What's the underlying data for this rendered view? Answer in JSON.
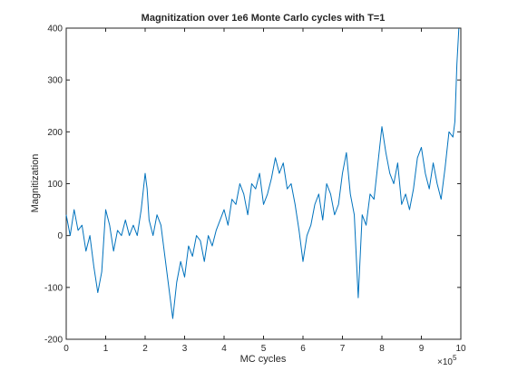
{
  "chart_data": {
    "type": "line",
    "title": "Magnitization over 1e6 Monte Carlo cycles with T=1",
    "xlabel": "MC cycles",
    "ylabel": "Magnitization",
    "xlim": [
      0,
      10
    ],
    "ylim": [
      -200,
      400
    ],
    "x_exponent": "×10",
    "x_exponent_power": "5",
    "x_ticks": [
      "0",
      "1",
      "2",
      "3",
      "4",
      "5",
      "6",
      "7",
      "8",
      "9",
      "10"
    ],
    "y_ticks": [
      "-200",
      "-100",
      "0",
      "100",
      "200",
      "300",
      "400"
    ],
    "grid": false,
    "legend": "none",
    "line_color": "#0072bd",
    "series": [
      {
        "x": [
          0,
          0.1,
          0.2,
          0.3,
          0.4,
          0.5,
          0.6,
          0.7,
          0.8,
          0.9,
          1.0,
          1.1,
          1.2,
          1.3,
          1.4,
          1.5,
          1.6,
          1.7,
          1.8,
          1.9,
          2.0,
          2.05,
          2.1,
          2.2,
          2.3,
          2.4,
          2.5,
          2.6,
          2.7,
          2.8,
          2.9,
          3.0,
          3.1,
          3.2,
          3.3,
          3.4,
          3.5,
          3.6,
          3.7,
          3.8,
          3.9,
          4.0,
          4.1,
          4.2,
          4.3,
          4.4,
          4.5,
          4.6,
          4.7,
          4.8,
          4.9,
          5.0,
          5.1,
          5.2,
          5.3,
          5.4,
          5.5,
          5.6,
          5.7,
          5.8,
          5.9,
          6.0,
          6.1,
          6.2,
          6.3,
          6.4,
          6.5,
          6.6,
          6.7,
          6.8,
          6.9,
          7.0,
          7.1,
          7.2,
          7.3,
          7.4,
          7.5,
          7.6,
          7.7,
          7.8,
          7.9,
          8.0,
          8.1,
          8.2,
          8.3,
          8.4,
          8.5,
          8.6,
          8.7,
          8.8,
          8.9,
          9.0,
          9.1,
          9.2,
          9.3,
          9.4,
          9.5,
          9.6,
          9.7,
          9.8,
          9.85,
          9.9,
          9.95,
          10.0
        ],
        "y": [
          40,
          0,
          50,
          10,
          20,
          -30,
          0,
          -60,
          -110,
          -70,
          50,
          20,
          -30,
          10,
          0,
          30,
          0,
          20,
          0,
          50,
          120,
          90,
          30,
          0,
          40,
          20,
          -40,
          -100,
          -160,
          -90,
          -50,
          -80,
          -20,
          -40,
          0,
          -10,
          -50,
          0,
          -20,
          10,
          30,
          50,
          20,
          70,
          60,
          100,
          80,
          40,
          100,
          90,
          120,
          60,
          80,
          110,
          150,
          120,
          140,
          90,
          100,
          60,
          10,
          -50,
          0,
          20,
          60,
          80,
          30,
          100,
          80,
          40,
          60,
          120,
          160,
          80,
          40,
          -120,
          40,
          20,
          80,
          70,
          140,
          210,
          160,
          120,
          100,
          140,
          60,
          80,
          50,
          90,
          150,
          170,
          120,
          90,
          140,
          100,
          70,
          130,
          200,
          190,
          220,
          330,
          400,
          400
        ]
      }
    ]
  }
}
